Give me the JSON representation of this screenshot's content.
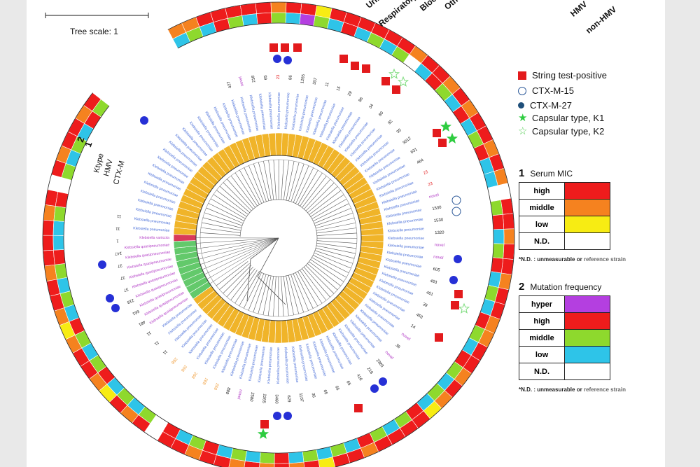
{
  "scale": {
    "label": "Tree scale: 1"
  },
  "column_headers": [
    "Urine",
    "Respiratory",
    "Blood",
    "Other",
    "HMV",
    "non-HMV"
  ],
  "ring_labels": {
    "ktype": "Ktype",
    "hmv": "HMV",
    "ctxm": "CTX-M",
    "ring1": "1",
    "ring2": "2"
  },
  "legend": {
    "string_test": "String test-positive",
    "ctx15": "CTX-M-15",
    "ctx27": "CTX-M-27",
    "k1": "Capsular type, K1",
    "k2": "Capsular type, K2"
  },
  "serum_mic": {
    "number": "1",
    "title": "Serum MIC",
    "rows": [
      {
        "label": "high",
        "color": "#ee1c1c"
      },
      {
        "label": "middle",
        "color": "#f5821f"
      },
      {
        "label": "low",
        "color": "#f7ec13"
      },
      {
        "label": "N.D.",
        "color": "#ffffff"
      }
    ],
    "note_main": "*N.D. : unmeasurable or ",
    "note_tail": "reference strain"
  },
  "mutation_freq": {
    "number": "2",
    "title": "Mutation frequency",
    "rows": [
      {
        "label": "hyper",
        "color": "#b43fe0"
      },
      {
        "label": "high",
        "color": "#ee1c1c"
      },
      {
        "label": "middle",
        "color": "#8ed92d"
      },
      {
        "label": "low",
        "color": "#2ec4e8"
      },
      {
        "label": "N.D.",
        "color": "#ffffff"
      }
    ],
    "note_main": "*N.D. : unmeasurable or ",
    "note_tail": "reference strain"
  },
  "colors": {
    "string": "#e31a1c",
    "ctx15": "#2f5b9a",
    "ctx27": "#2630d6",
    "k1": "#2ecc40",
    "k2": "#7ddc7d",
    "clade_main": "#f0b429",
    "clade_quasi": "#63c96b",
    "clade_var": "#d93a5a",
    "species_blue": "#4a6fd8",
    "species_purple": "#b23cc6"
  },
  "species": {
    "kp": "Klebsiella pneumoniae",
    "kq": "Klebsiella quasipneumoniae",
    "kv": "Klebsiella variicola"
  },
  "st_labels": [
    "427",
    "novel",
    "218",
    "65",
    "23",
    "86",
    "1265",
    "307",
    "11",
    "15",
    "29",
    "86",
    "34",
    "80",
    "92",
    "35",
    "3012",
    "631",
    "464",
    "23",
    "23",
    "novel",
    "1530",
    "1530",
    "1320",
    "novel",
    "novel",
    "605",
    "463",
    "461",
    "39",
    "453",
    "14",
    "novel",
    "36",
    "novel",
    "2983",
    "218",
    "416",
    "65",
    "65",
    "65",
    "36",
    "1107",
    "629",
    "3460",
    "2265",
    "2580",
    "novel",
    "889",
    "268",
    "268",
    "268",
    "268",
    "268",
    "11",
    "11",
    "11",
    "481",
    "661",
    "218",
    "37",
    "37",
    "37",
    "147",
    "1",
    "11",
    "11"
  ],
  "rings": {
    "outer": [
      "or",
      "or",
      "rd",
      "rd",
      "rd",
      "rd",
      "rd",
      "or",
      "rd",
      "rd",
      "ye",
      "rd",
      "rd",
      "rd",
      "rd",
      "rd",
      "rd",
      "or",
      "rd",
      "rd",
      "or",
      "rd",
      "or",
      "rd",
      "rd",
      "or",
      "rd",
      "or",
      "nd",
      "rd",
      "rd",
      "or",
      "rd",
      "rd",
      "or",
      "rd",
      "rd",
      "or",
      "or",
      "rd",
      "rd",
      "or",
      "rd",
      "or",
      "ye",
      "rd",
      "rd",
      "rd",
      "rd",
      "or",
      "rd",
      "rd",
      "ye",
      "rd",
      "or",
      "rd",
      "or",
      "rd",
      "or",
      "rd",
      "rd",
      "or",
      "rd",
      "rd",
      "nd",
      "rd",
      "or",
      "rd",
      "ye",
      "or",
      "rd",
      "rd",
      "or",
      "ye",
      "or",
      "rd",
      "rd",
      "or",
      "rd",
      "rd",
      "rd",
      "or",
      "rd",
      "nd",
      "rd",
      "or",
      "rd",
      "rd",
      "or",
      "rd"
    ],
    "inner": [
      "cy",
      "gr",
      "cy",
      "rd",
      "gr",
      "cy",
      "rd",
      "gr",
      "cy",
      "pu",
      "gr",
      "cy",
      "rd",
      "cy",
      "gr",
      "cy",
      "gr",
      "nd",
      "cy",
      "rd",
      "gr",
      "cy",
      "rd",
      "cy",
      "gr",
      "rd",
      "cy",
      "cy",
      "nd",
      "gr",
      "rd",
      "cy",
      "gr",
      "rd",
      "cy",
      "gr",
      "cy",
      "rd",
      "gr",
      "cy",
      "rd",
      "gr",
      "cy",
      "gr",
      "cy",
      "rd",
      "gr",
      "cy",
      "gr",
      "rd",
      "cy",
      "gr",
      "cy",
      "gr",
      "cy",
      "rd",
      "gr",
      "cy",
      "gr",
      "cy",
      "rd",
      "gr",
      "cy",
      "rd",
      "nd",
      "gr",
      "cy",
      "gr",
      "cy",
      "rd",
      "gr",
      "cy",
      "gr",
      "rd",
      "cy",
      "gr",
      "cy",
      "gr",
      "rd",
      "cy",
      "cy",
      "gr",
      "rd",
      "nd",
      "gr",
      "cy",
      "gr",
      "cy",
      "rd",
      "gr"
    ]
  }
}
